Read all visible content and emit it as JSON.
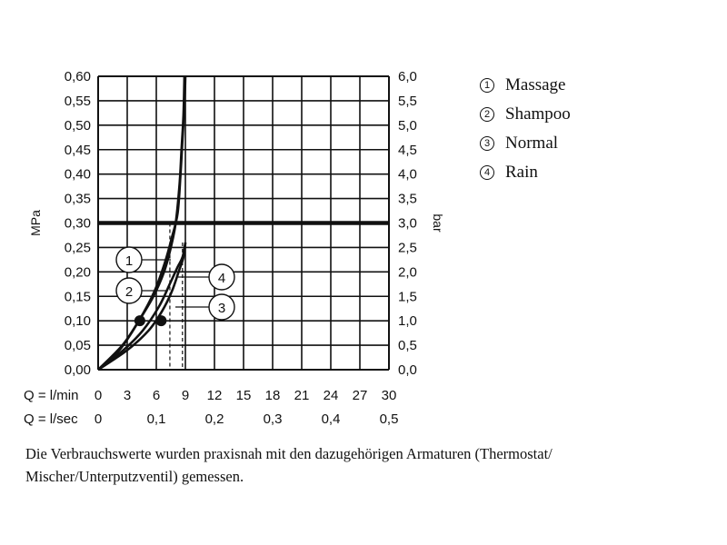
{
  "chart_data": {
    "type": "line",
    "xlabel_primary": "Q = l/min",
    "xlabel_secondary": "Q = l/sec",
    "ylabel_left": "MPa",
    "ylabel_right": "bar",
    "xlim": [
      0,
      30
    ],
    "ylim": [
      0,
      0.6
    ],
    "x_ticks": [
      "0",
      "3",
      "6",
      "9",
      "12",
      "15",
      "18",
      "21",
      "24",
      "27",
      "30"
    ],
    "x_ticks_secondary": [
      {
        "x": 0,
        "label": "0"
      },
      {
        "x": 6,
        "label": "0,1"
      },
      {
        "x": 12,
        "label": "0,2"
      },
      {
        "x": 18,
        "label": "0,3"
      },
      {
        "x": 24,
        "label": "0,4"
      },
      {
        "x": 30,
        "label": "0,5"
      }
    ],
    "y_ticks_left": [
      "0,00",
      "0,05",
      "0,10",
      "0,15",
      "0,20",
      "0,25",
      "0,30",
      "0,35",
      "0,40",
      "0,45",
      "0,50",
      "0,55",
      "0,60"
    ],
    "y_ticks_right": [
      "0,0",
      "0,5",
      "1,0",
      "1,5",
      "2,0",
      "2,5",
      "3,0",
      "3,5",
      "4,0",
      "4,5",
      "5,0",
      "5,5",
      "6,0"
    ],
    "grid": true,
    "reference_line_y": 0.3,
    "series": [
      {
        "name": "1",
        "x": [
          0,
          2.5,
          4.2,
          5.7,
          6.8,
          7.5,
          8.0,
          8.4,
          8.6,
          8.8,
          8.9
        ],
        "y": [
          0,
          0.05,
          0.1,
          0.15,
          0.2,
          0.25,
          0.3,
          0.38,
          0.45,
          0.52,
          0.6
        ]
      },
      {
        "name": "2",
        "x": [
          0,
          2.2,
          4.2,
          5.8,
          6.9,
          7.6,
          8.2,
          8.5,
          8.7,
          8.9,
          9.0
        ],
        "y": [
          0,
          0.04,
          0.1,
          0.16,
          0.22,
          0.27,
          0.32,
          0.4,
          0.47,
          0.54,
          0.6
        ]
      },
      {
        "name": "3",
        "x": [
          0,
          3.0,
          5.2,
          6.6,
          7.6,
          8.3,
          8.8,
          9.0
        ],
        "y": [
          0,
          0.04,
          0.08,
          0.12,
          0.16,
          0.2,
          0.23,
          0.26
        ]
      },
      {
        "name": "4",
        "x": [
          0,
          2.6,
          4.6,
          6.3,
          7.5,
          8.2,
          8.7,
          9.0
        ],
        "y": [
          0,
          0.04,
          0.08,
          0.13,
          0.18,
          0.21,
          0.23,
          0.26
        ]
      }
    ],
    "points": [
      {
        "x": 4.3,
        "y": 0.1
      },
      {
        "x": 6.5,
        "y": 0.1
      }
    ],
    "dashed_drops": [
      {
        "x": 7.4,
        "y": 0.3
      },
      {
        "x": 8.7,
        "y": 0.26
      }
    ],
    "labels": [
      {
        "text": "1",
        "series": "1"
      },
      {
        "text": "2",
        "series": "2"
      },
      {
        "text": "3",
        "series": "3"
      },
      {
        "text": "4",
        "series": "4"
      }
    ]
  },
  "legend": [
    {
      "num": "1",
      "label": "Massage"
    },
    {
      "num": "2",
      "label": "Shampoo"
    },
    {
      "num": "3",
      "label": "Normal"
    },
    {
      "num": "4",
      "label": "Rain"
    }
  ],
  "caption": "Die Verbrauchswerte wurden praxisnah mit den dazugehörigen Armaturen (Thermostat/ Mischer/Unterputzventil) gemessen."
}
